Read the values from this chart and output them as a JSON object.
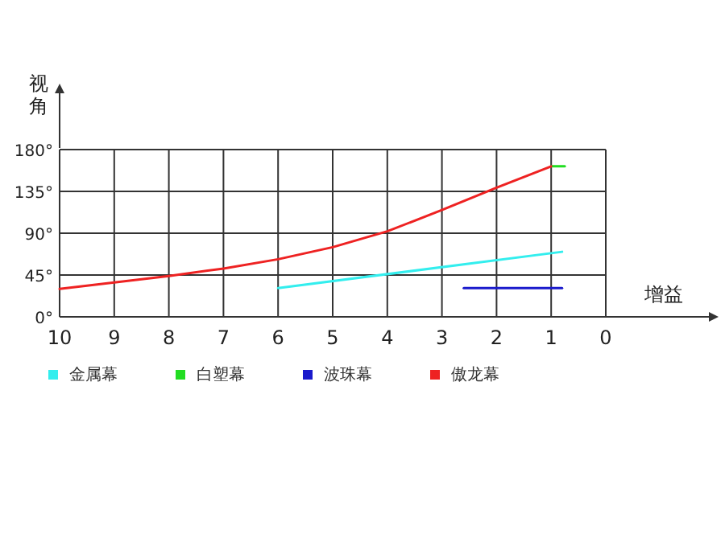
{
  "chart_data": {
    "type": "line",
    "xlabel": "增益",
    "ylabel": "视角",
    "xlim": [
      10,
      0
    ],
    "ylim": [
      0,
      180
    ],
    "xticks": [
      10,
      9,
      8,
      7,
      6,
      5,
      4,
      3,
      2,
      1,
      0
    ],
    "yticks": [
      {
        "value": 0,
        "label": "0°"
      },
      {
        "value": 45,
        "label": "45°"
      },
      {
        "value": 90,
        "label": "90°"
      },
      {
        "value": 135,
        "label": "135°"
      },
      {
        "value": 180,
        "label": "180°"
      }
    ],
    "grid": true,
    "legend": "bottom",
    "marker": "none",
    "line_style": "solid",
    "series": [
      {
        "name": "金属幕",
        "color": "#33eeee",
        "x": [
          6,
          0.8
        ],
        "values": [
          31,
          70
        ]
      },
      {
        "name": "白塑幕",
        "color": "#22dd22",
        "x": [
          1,
          0.75
        ],
        "values": [
          162,
          162
        ]
      },
      {
        "name": "波珠幕",
        "color": "#1a1acc",
        "x": [
          2.6,
          0.8
        ],
        "values": [
          31,
          31
        ]
      },
      {
        "name": "傲龙幕",
        "color": "#ee2222",
        "x": [
          10,
          9,
          8,
          7,
          6,
          5,
          4,
          3,
          2,
          1
        ],
        "values": [
          30,
          37,
          44,
          52,
          62,
          75,
          92,
          115,
          139,
          162
        ]
      }
    ]
  }
}
